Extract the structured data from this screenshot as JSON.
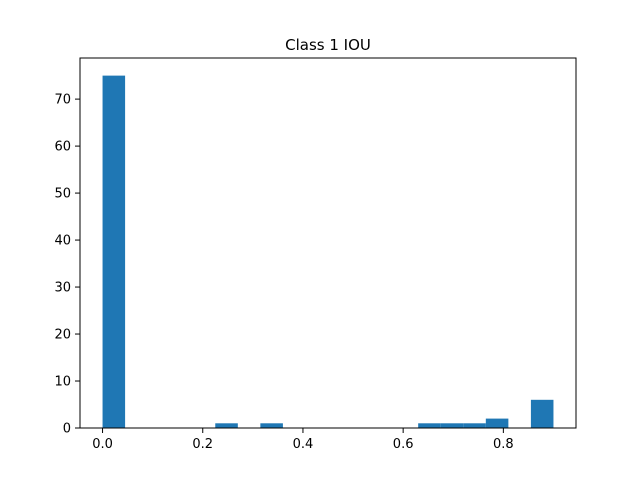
{
  "chart_data": {
    "type": "bar",
    "title": "Class 1 IOU",
    "xlabel": "",
    "ylabel": "",
    "bar_color": "#1f77b4",
    "bin_width": 0.045,
    "bins": [
      {
        "x_start": 0.0,
        "x_end": 0.045,
        "count": 75
      },
      {
        "x_start": 0.225,
        "x_end": 0.27,
        "count": 1
      },
      {
        "x_start": 0.315,
        "x_end": 0.36,
        "count": 1
      },
      {
        "x_start": 0.63,
        "x_end": 0.675,
        "count": 1
      },
      {
        "x_start": 0.675,
        "x_end": 0.72,
        "count": 1
      },
      {
        "x_start": 0.72,
        "x_end": 0.765,
        "count": 1
      },
      {
        "x_start": 0.765,
        "x_end": 0.81,
        "count": 2
      },
      {
        "x_start": 0.855,
        "x_end": 0.9,
        "count": 6
      }
    ],
    "xlim": [
      -0.045,
      0.945
    ],
    "ylim": [
      0,
      78.75
    ],
    "xticks": [
      {
        "value": 0.0,
        "label": "0.0"
      },
      {
        "value": 0.2,
        "label": "0.2"
      },
      {
        "value": 0.4,
        "label": "0.4"
      },
      {
        "value": 0.6,
        "label": "0.6"
      },
      {
        "value": 0.8,
        "label": "0.8"
      }
    ],
    "yticks": [
      {
        "value": 0,
        "label": "0"
      },
      {
        "value": 10,
        "label": "10"
      },
      {
        "value": 20,
        "label": "20"
      },
      {
        "value": 30,
        "label": "30"
      },
      {
        "value": 40,
        "label": "40"
      },
      {
        "value": 50,
        "label": "50"
      },
      {
        "value": 60,
        "label": "60"
      },
      {
        "value": 70,
        "label": "70"
      }
    ],
    "grid": false,
    "legend": "none"
  }
}
